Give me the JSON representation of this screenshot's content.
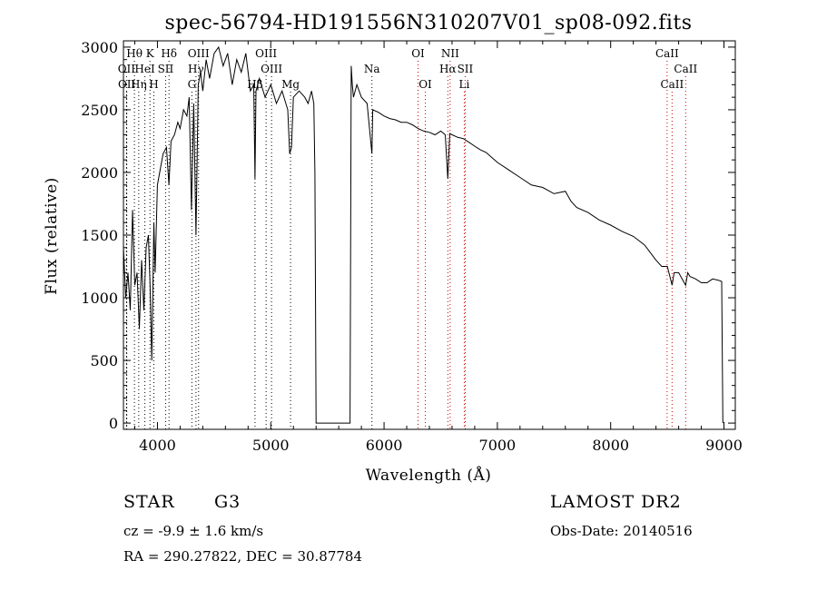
{
  "chart_data": {
    "type": "line",
    "title": "spec-56794-HD191556N310207V01_sp08-092.fits",
    "xlabel": "Wavelength (Å)",
    "ylabel": "Flux (relative)",
    "xlim": [
      3700,
      9100
    ],
    "ylim": [
      -50,
      3050
    ],
    "x_ticks": [
      "4000",
      "5000",
      "6000",
      "7000",
      "8000",
      "9000"
    ],
    "y_ticks": [
      "0",
      "500",
      "1000",
      "1500",
      "2000",
      "2500",
      "3000"
    ],
    "grid": false,
    "series": [
      {
        "x": [
          3700,
          3720,
          3740,
          3760,
          3780,
          3800,
          3820,
          3840,
          3860,
          3880,
          3900,
          3920,
          3935,
          3950,
          3968,
          3980,
          4000,
          4020,
          4050,
          4080,
          4101,
          4120,
          4150,
          4180,
          4200,
          4230,
          4260,
          4280,
          4300,
          4320,
          4340,
          4360,
          4380,
          4400,
          4430,
          4460,
          4500,
          4540,
          4580,
          4620,
          4660,
          4700,
          4740,
          4780,
          4820,
          4850,
          4861,
          4870,
          4900,
          4950,
          5000,
          5050,
          5100,
          5150,
          5167,
          5183,
          5200,
          5250,
          5300,
          5330,
          5360,
          5380,
          5390,
          5400,
          5700,
          5710,
          5720,
          5730,
          5760,
          5800,
          5850,
          5893,
          5900,
          5950,
          6000,
          6050,
          6100,
          6150,
          6200,
          6250,
          6300,
          6350,
          6400,
          6450,
          6500,
          6540,
          6563,
          6580,
          6600,
          6650,
          6700,
          6750,
          6800,
          6850,
          6900,
          6950,
          7000,
          7100,
          7200,
          7300,
          7400,
          7500,
          7600,
          7650,
          7700,
          7800,
          7900,
          8000,
          8100,
          8200,
          8300,
          8400,
          8450,
          8500,
          8542,
          8560,
          8600,
          8662,
          8680,
          8700,
          8750,
          8800,
          8850,
          8900,
          8950,
          8980,
          8990
        ],
        "y": [
          1400,
          1000,
          1200,
          900,
          1700,
          1100,
          1200,
          750,
          1300,
          900,
          1400,
          1500,
          1100,
          500,
          1600,
          1200,
          1900,
          2000,
          2150,
          2200,
          1900,
          2250,
          2300,
          2400,
          2350,
          2500,
          2450,
          2600,
          1700,
          2550,
          1500,
          2700,
          2800,
          2650,
          2900,
          2750,
          2950,
          3000,
          2850,
          2950,
          2700,
          2900,
          2800,
          2950,
          2650,
          2700,
          1950,
          2650,
          2750,
          2600,
          2700,
          2550,
          2650,
          2500,
          2150,
          2200,
          2600,
          2650,
          2600,
          2550,
          2650,
          2550,
          2000,
          0,
          0,
          2850,
          2700,
          2600,
          2700,
          2600,
          2550,
          2150,
          2500,
          2480,
          2450,
          2430,
          2420,
          2400,
          2400,
          2380,
          2350,
          2330,
          2320,
          2300,
          2330,
          2300,
          1950,
          2310,
          2300,
          2280,
          2270,
          2240,
          2210,
          2180,
          2160,
          2120,
          2080,
          2020,
          1960,
          1900,
          1880,
          1830,
          1850,
          1770,
          1720,
          1680,
          1620,
          1580,
          1530,
          1490,
          1420,
          1300,
          1250,
          1250,
          1100,
          1200,
          1200,
          1100,
          1200,
          1170,
          1150,
          1120,
          1120,
          1150,
          1140,
          1130,
          0
        ]
      }
    ],
    "line_markers": [
      {
        "label": "Hθ",
        "x": 3797,
        "row": 0,
        "color": "#000000"
      },
      {
        "label": "K",
        "x": 3934,
        "row": 0,
        "color": "#000000"
      },
      {
        "label": "Hδ",
        "x": 4102,
        "row": 0,
        "color": "#000000"
      },
      {
        "label": "OIII",
        "x": 4363,
        "row": 0,
        "color": "#000000"
      },
      {
        "label": "OIII",
        "x": 4959,
        "row": 0,
        "color": "#000000"
      },
      {
        "label": "OI",
        "x": 6300,
        "row": 0,
        "color": "#cc0000"
      },
      {
        "label": "NII",
        "x": 6583,
        "row": 0,
        "color": "#cc0000"
      },
      {
        "label": "CaII",
        "x": 8498,
        "row": 0,
        "color": "#cc0000"
      },
      {
        "label": "OII",
        "x": 3727,
        "row": 1,
        "color": "#000000"
      },
      {
        "label": "HeI",
        "x": 3889,
        "row": 1,
        "color": "#000000"
      },
      {
        "label": "SII",
        "x": 4072,
        "row": 1,
        "color": "#000000"
      },
      {
        "label": "Hγ",
        "x": 4340,
        "row": 1,
        "color": "#000000"
      },
      {
        "label": "OIII",
        "x": 5007,
        "row": 1,
        "color": "#000000"
      },
      {
        "label": "Na",
        "x": 5893,
        "row": 1,
        "color": "#000000"
      },
      {
        "label": "Hα",
        "x": 6563,
        "row": 1,
        "color": "#cc0000"
      },
      {
        "label": "SII",
        "x": 6716,
        "row": 1,
        "color": "#cc0000"
      },
      {
        "label": "CaII",
        "x": 8662,
        "row": 1,
        "color": "#cc0000"
      },
      {
        "label": "OII",
        "x": 3729,
        "row": 2,
        "color": "#000000"
      },
      {
        "label": "Hη",
        "x": 3835,
        "row": 2,
        "color": "#000000"
      },
      {
        "label": "H",
        "x": 3968,
        "row": 2,
        "color": "#000000"
      },
      {
        "label": "G",
        "x": 4304,
        "row": 2,
        "color": "#000000"
      },
      {
        "label": "Hβ",
        "x": 4861,
        "row": 2,
        "color": "#000000"
      },
      {
        "label": "Mg",
        "x": 5175,
        "row": 2,
        "color": "#000000"
      },
      {
        "label": "OI",
        "x": 6364,
        "row": 2,
        "color": "#cc0000"
      },
      {
        "label": "Li",
        "x": 6708,
        "row": 2,
        "color": "#cc0000"
      },
      {
        "label": "CaII",
        "x": 8542,
        "row": 2,
        "color": "#cc0000"
      }
    ]
  },
  "info": {
    "object_class": "STAR",
    "subclass": "G3",
    "survey": "LAMOST DR2",
    "redshift": "cz = -9.9 ± 1.6 km/s",
    "obs_date": "Obs-Date: 20140516",
    "coords": "RA = 290.27822, DEC =  30.87784"
  }
}
